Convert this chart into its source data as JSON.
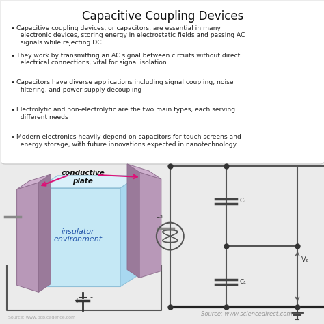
{
  "title": "Capacitive Coupling Devices",
  "background_color": "#ebebeb",
  "box_background": "#ffffff",
  "bullet_points": [
    "Capacitive coupling devices, or capacitors, are essential in many\n  electronic devices, storing energy in electrostatic fields and passing AC\n  signals while rejecting DC",
    "They work by transmitting an AC signal between circuits without direct\n  electrical connections, vital for signal isolation",
    "Capacitors have diverse applications including signal coupling, noise\n  filtering, and power supply decoupling",
    "Electrolytic and non-electrolytic are the two main types, each serving\n  different needs",
    "Modern electronics heavily depend on capacitors for touch screens and\n  energy storage, with future innovations expected in nanotechnology"
  ],
  "source_text": "Source: www.sciencedirect.com",
  "source_cadence": "Source: www.pcb.cadence.com",
  "conductive_plate_text": "conductive\nplate",
  "insulator_text": "insulator\nenvironment",
  "circuit_labels": [
    "E₂",
    "C₁",
    "C₁",
    "V₂"
  ]
}
